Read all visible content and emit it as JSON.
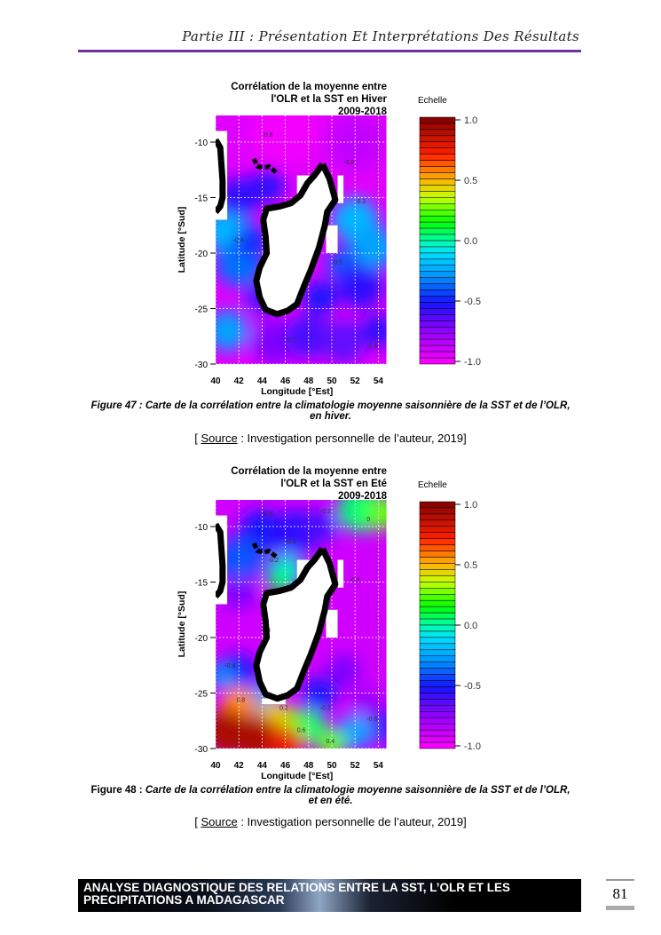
{
  "header": {
    "title": "Partie III : Présentation Et Interprétations Des Résultats"
  },
  "figures": [
    {
      "title_lines": [
        "Corrélation de la moyenne entre",
        "l'OLR et la SST en Hiver",
        "2009-2018"
      ],
      "legend_title": "Echelle",
      "xlabel": "Longitude [°Est]",
      "ylabel": "Latitude [°Sud]",
      "caption_label": "Figure 47 :",
      "caption_text": "Carte de la corrélation entre la climatologie moyenne saisonnière de la SST et de l’OLR,",
      "caption_line2": "en hiver.",
      "source_label": "Source",
      "source_text": " : Investigation personnelle de l’auteur, 2019]",
      "source_open": "[ ",
      "field": {
        "background": -0.92,
        "blobs": [
          [
            46,
            -9,
            -0.97,
            3
          ],
          [
            52,
            -10,
            -0.85,
            2.5
          ],
          [
            41,
            -18,
            -0.2,
            2
          ],
          [
            42,
            -21,
            -0.35,
            2
          ],
          [
            43,
            -19,
            -0.45,
            1.5
          ],
          [
            41,
            -27,
            -0.25,
            1.8
          ],
          [
            42,
            -15,
            -0.55,
            1.8
          ],
          [
            44.5,
            -14,
            -0.55,
            1.5
          ],
          [
            52,
            -17,
            -0.2,
            2
          ],
          [
            53.5,
            -19.5,
            -0.25,
            2
          ],
          [
            51,
            -21,
            -0.4,
            1.5
          ],
          [
            52.5,
            -23,
            -0.55,
            2
          ],
          [
            45,
            -28,
            -0.7,
            2
          ],
          [
            48,
            -27.5,
            -0.6,
            2
          ],
          [
            51,
            -28,
            -0.65,
            2
          ],
          [
            54,
            -27,
            -0.55,
            1.5
          ],
          [
            44,
            -24,
            -0.6,
            1.5
          ],
          [
            49,
            -24,
            -0.5,
            1.5
          ]
        ]
      },
      "masks": [
        [
          40,
          -9,
          41,
          -17
        ],
        [
          47,
          -13,
          48.5,
          -15
        ],
        [
          50.5,
          -13,
          51,
          -15.5
        ],
        [
          49.5,
          -17.5,
          50.5,
          -20
        ]
      ],
      "contour_labels": [
        [
          44,
          -9.5,
          "-0.8"
        ],
        [
          51,
          -12,
          "-0.8"
        ],
        [
          52,
          -15.5,
          "-0.3"
        ],
        [
          41.5,
          -19,
          "-0.4"
        ],
        [
          50,
          -21,
          "-0.5"
        ],
        [
          53,
          -28.5,
          "-0.6"
        ],
        [
          46,
          -28,
          "-0.7"
        ]
      ]
    },
    {
      "title_lines": [
        "Corrélation de la moyenne entre",
        "l'OLR et la SST en Eté",
        "2009-2018"
      ],
      "legend_title": "Echelle",
      "xlabel": "Longitude [°Est]",
      "ylabel": "Latitude [°Sud]",
      "caption_label": "Figure 48 :",
      "caption_text": "Carte de la corrélation entre la climatologie moyenne saisonnière de la SST et de l’OLR,",
      "caption_line2": "et en été.",
      "source_label": "Source",
      "source_text": " : Investigation personnelle de l’auteur, 2019]",
      "source_open": "[ ",
      "field": {
        "background": -0.88,
        "blobs": [
          [
            44,
            -10.5,
            -0.5,
            2
          ],
          [
            47,
            -10.5,
            -0.55,
            2
          ],
          [
            49,
            -10,
            -0.6,
            1.5
          ],
          [
            52.5,
            -8.5,
            0.05,
            2
          ],
          [
            54.5,
            -8.8,
            0.25,
            1.5
          ],
          [
            42,
            -13,
            -0.4,
            2
          ],
          [
            46,
            -14,
            -0.05,
            1.5
          ],
          [
            45.5,
            -15,
            0.1,
            1
          ],
          [
            42,
            -16,
            -0.7,
            1.5
          ],
          [
            42,
            -23,
            -0.5,
            1.5
          ],
          [
            40.5,
            -23.5,
            -0.3,
            1.2
          ],
          [
            44,
            -25.5,
            -0.3,
            1.5
          ],
          [
            49,
            -25,
            -0.5,
            1.5
          ],
          [
            51,
            -23,
            -0.7,
            1.5
          ],
          [
            53,
            -26,
            -0.75,
            1.5
          ],
          [
            54.5,
            -28,
            -0.6,
            1.5
          ],
          [
            52,
            -28.5,
            -0.25,
            1.5
          ],
          [
            50,
            -29.5,
            0.25,
            1.3
          ],
          [
            48,
            -28,
            0.05,
            1.5
          ],
          [
            46.5,
            -27.5,
            0.25,
            1.2
          ],
          [
            42,
            -26,
            0.55,
            1.5
          ],
          [
            45,
            -27,
            0.45,
            1.3
          ],
          [
            41,
            -28.5,
            0.9,
            2
          ],
          [
            43.5,
            -29,
            0.9,
            2
          ],
          [
            46,
            -29.5,
            0.75,
            1.5
          ]
        ]
      },
      "masks": [
        [
          40,
          -9,
          41,
          -17
        ],
        [
          47,
          -13,
          48.5,
          -15
        ],
        [
          50.5,
          -13,
          51,
          -15.5
        ],
        [
          49.5,
          -17.5,
          50.5,
          -20
        ],
        [
          44,
          -25.5,
          46,
          -26
        ]
      ],
      "contour_labels": [
        [
          44,
          -9,
          "-0.6"
        ],
        [
          46,
          -11.5,
          "-0.8"
        ],
        [
          49,
          -8.8,
          "-0.2"
        ],
        [
          53,
          -9.5,
          "0"
        ],
        [
          44.5,
          -13.2,
          "-0.2"
        ],
        [
          51.5,
          -15,
          "-0.8"
        ],
        [
          43.8,
          -19.5,
          "-0.8"
        ],
        [
          40.8,
          -22.7,
          "-0.8"
        ],
        [
          41.8,
          -25.8,
          "0.8"
        ],
        [
          45.5,
          -26.5,
          "0.2"
        ],
        [
          49,
          -26.5,
          "-0.2"
        ],
        [
          53,
          -27.5,
          "-0.6"
        ],
        [
          47,
          -28.5,
          "0.6"
        ],
        [
          49.5,
          -29.5,
          "0.4"
        ]
      ]
    }
  ],
  "chart_common": {
    "xticks": [
      40,
      42,
      44,
      46,
      48,
      50,
      52,
      54
    ],
    "yticks": [
      -10,
      -15,
      -20,
      -25,
      -30
    ],
    "xlim": [
      40,
      54.7
    ],
    "ylim": [
      -30,
      -7.6
    ],
    "colorbar_ticks": [
      "1.0",
      "0.5",
      "0.0",
      "-0.5",
      "-1.0"
    ],
    "colorbar_range": [
      -1,
      1
    ],
    "colormap": [
      [
        -1,
        "#ff00ff"
      ],
      [
        -0.75,
        "#9a00ff"
      ],
      [
        -0.5,
        "#1414ff"
      ],
      [
        -0.3,
        "#0090ff"
      ],
      [
        -0.1,
        "#00e0ff"
      ],
      [
        0,
        "#00ffa8"
      ],
      [
        0.15,
        "#00ff00"
      ],
      [
        0.35,
        "#c8ff00"
      ],
      [
        0.5,
        "#ffb000"
      ],
      [
        0.7,
        "#ff2000"
      ],
      [
        1,
        "#800000"
      ]
    ],
    "madagascar": [
      [
        49.2,
        -12
      ],
      [
        49.8,
        -13.3
      ],
      [
        50.3,
        -15.2
      ],
      [
        49.6,
        -16.3
      ],
      [
        49.4,
        -17.5
      ],
      [
        48.9,
        -19.5
      ],
      [
        48.2,
        -21.5
      ],
      [
        47.6,
        -23
      ],
      [
        47,
        -24.6
      ],
      [
        46.2,
        -25.2
      ],
      [
        45.3,
        -25.5
      ],
      [
        44.3,
        -25.1
      ],
      [
        43.8,
        -24
      ],
      [
        43.5,
        -22.5
      ],
      [
        43.8,
        -21.3
      ],
      [
        44.4,
        -20
      ],
      [
        44.3,
        -18.5
      ],
      [
        44.1,
        -17
      ],
      [
        44.4,
        -16
      ],
      [
        45.5,
        -15.8
      ],
      [
        46.5,
        -15.5
      ],
      [
        47.3,
        -14.8
      ],
      [
        47.9,
        -13.7
      ],
      [
        48.5,
        -13
      ],
      [
        49.2,
        -12
      ]
    ],
    "africa": [
      [
        40,
        -9.8
      ],
      [
        40.4,
        -10.5
      ],
      [
        40.5,
        -12
      ],
      [
        40.6,
        -13.5
      ],
      [
        40.6,
        -15
      ],
      [
        40.4,
        -15.8
      ],
      [
        40,
        -16.3
      ]
    ],
    "islands": [
      [
        43.3,
        -11.5
      ],
      [
        43.6,
        -12.2
      ],
      [
        44.2,
        -12.3
      ],
      [
        44.6,
        -12.2
      ],
      [
        45.3,
        -12.8
      ]
    ]
  },
  "footer": {
    "banner_line1": "ANALYSE DIAGNOSTIQUE DES RELATIONS ENTRE LA SST, L’OLR ET LES",
    "banner_line2": "PRECIPITATIONS A MADAGASCAR",
    "page_number": "81"
  }
}
